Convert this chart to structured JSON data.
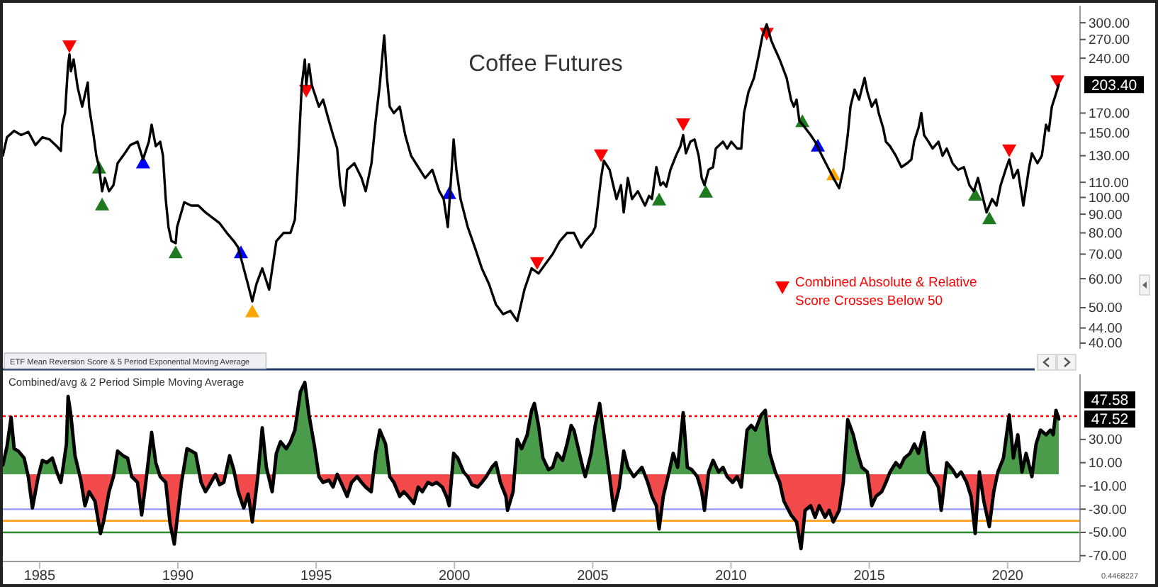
{
  "chart_data": [
    {
      "type": "line",
      "title": "Coffee Futures",
      "xlim": [
        1983.67,
        2022.62
      ],
      "ylim": [
        38.6,
        334
      ],
      "log": true,
      "tick_labels": "y",
      "legend": "bottom right",
      "yticks": [
        {
          "value": 300,
          "label": "300.00"
        },
        {
          "value": 270,
          "label": "270.00"
        },
        {
          "value": 240,
          "label": "240.00"
        },
        {
          "value": 170,
          "label": "170.00"
        },
        {
          "value": 150,
          "label": "150.00"
        },
        {
          "value": 130,
          "label": "130.00"
        },
        {
          "value": 110,
          "label": "110.00"
        },
        {
          "value": 100,
          "label": "100.00"
        },
        {
          "value": 90,
          "label": "90.00"
        },
        {
          "value": 80,
          "label": "80.00"
        },
        {
          "value": 70,
          "label": "70.00"
        },
        {
          "value": 60,
          "label": "60.00"
        },
        {
          "value": 50,
          "label": "50.00"
        },
        {
          "value": 44,
          "label": "44.00"
        },
        {
          "value": 40,
          "label": "40.00"
        }
      ],
      "series": [
        {
          "color": "#000000",
          "x": [
            1983.67,
            1983.82,
            1984.08,
            1984.33,
            1984.59,
            1984.85,
            1985.1,
            1985.36,
            1985.62,
            1985.77,
            1985.82,
            1985.92,
            1986.03,
            1986.08,
            1986.13,
            1986.23,
            1986.38,
            1986.54,
            1986.74,
            1986.79,
            1986.95,
            1987.05,
            1987.15,
            1987.26,
            1987.36,
            1987.51,
            1987.67,
            1987.82,
            1988.08,
            1988.28,
            1988.54,
            1988.74,
            1988.95,
            1989.05,
            1989.2,
            1989.36,
            1989.46,
            1989.56,
            1989.66,
            1989.77,
            1989.92,
            1989.97,
            1990.23,
            1990.48,
            1990.74,
            1991.0,
            1991.25,
            1991.51,
            1991.77,
            1992.02,
            1992.18,
            1992.38,
            1992.53,
            1992.69,
            1992.84,
            1993.05,
            1993.3,
            1993.56,
            1993.82,
            1994.07,
            1994.23,
            1994.33,
            1994.48,
            1994.59,
            1994.64,
            1994.74,
            1994.84,
            1995.1,
            1995.25,
            1995.46,
            1995.61,
            1995.76,
            1995.87,
            1996.02,
            1996.12,
            1996.38,
            1996.64,
            1996.79,
            1997.0,
            1997.15,
            1997.3,
            1997.46,
            1997.56,
            1997.66,
            1997.81,
            1998.02,
            1998.22,
            1998.43,
            1998.69,
            1998.94,
            1999.2,
            1999.45,
            1999.61,
            1999.76,
            1999.97,
            2000.07,
            2000.22,
            2000.48,
            2000.74,
            2000.99,
            2001.25,
            2001.5,
            2001.76,
            2002.02,
            2002.27,
            2002.53,
            2002.79,
            2003.04,
            2003.3,
            2003.55,
            2003.81,
            2004.07,
            2004.32,
            2004.58,
            2004.73,
            2004.99,
            2005.09,
            2005.3,
            2005.4,
            2005.61,
            2005.86,
            2006.02,
            2006.12,
            2006.27,
            2006.42,
            2006.63,
            2006.89,
            2007.04,
            2007.14,
            2007.3,
            2007.45,
            2007.55,
            2007.66,
            2007.81,
            2008.01,
            2008.17,
            2008.27,
            2008.37,
            2008.53,
            2008.68,
            2008.83,
            2008.94,
            2009.04,
            2009.19,
            2009.35,
            2009.45,
            2009.71,
            2009.86,
            2010.01,
            2010.22,
            2010.37,
            2010.47,
            2010.63,
            2010.83,
            2010.99,
            2011.14,
            2011.29,
            2011.45,
            2011.6,
            2011.76,
            2012.01,
            2012.17,
            2012.27,
            2012.37,
            2012.47,
            2012.68,
            2012.88,
            2013.04,
            2013.29,
            2013.5,
            2013.7,
            2013.91,
            2014.06,
            2014.22,
            2014.32,
            2014.47,
            2014.63,
            2014.83,
            2014.93,
            2015.09,
            2015.24,
            2015.34,
            2015.5,
            2015.6,
            2015.75,
            2015.96,
            2016.16,
            2016.37,
            2016.52,
            2016.62,
            2016.78,
            2016.88,
            2016.98,
            2017.14,
            2017.29,
            2017.5,
            2017.65,
            2017.8,
            2018.01,
            2018.21,
            2018.42,
            2018.62,
            2018.78,
            2018.93,
            2019.09,
            2019.24,
            2019.44,
            2019.6,
            2019.75,
            2019.96,
            2020.06,
            2020.21,
            2020.37,
            2020.57,
            2020.78,
            2020.88,
            2021.08,
            2021.24,
            2021.39,
            2021.49,
            2021.6,
            2021.75,
            2021.85
          ],
          "values": [
            130,
            146,
            152,
            148,
            151,
            139,
            146,
            144,
            138,
            134,
            158,
            170,
            231,
            246,
            221,
            238,
            199,
            177,
            206,
            177,
            148,
            130,
            121,
            104,
            113,
            104,
            108,
            124,
            132,
            139,
            142,
            127,
            142,
            158,
            138,
            142,
            130,
            99,
            83,
            76,
            75,
            83,
            97,
            95,
            95,
            91,
            88,
            85,
            80,
            76,
            73,
            64,
            58,
            52,
            58,
            64,
            56,
            76,
            80,
            80,
            87,
            119,
            203,
            238,
            203,
            231,
            203,
            177,
            185,
            162,
            148,
            136,
            108,
            95,
            119,
            124,
            113,
            104,
            124,
            162,
            203,
            277,
            212,
            177,
            170,
            177,
            148,
            130,
            121,
            113,
            119,
            104,
            99,
            83,
            144,
            119,
            99,
            83,
            73,
            64,
            58,
            51,
            48,
            49,
            46,
            56,
            64,
            62,
            66,
            70,
            76,
            80,
            80,
            73,
            76,
            80,
            83,
            113,
            126,
            119,
            99,
            108,
            91,
            113,
            99,
            104,
            95,
            101,
            99,
            121,
            108,
            110,
            107,
            119,
            130,
            138,
            148,
            132,
            142,
            144,
            130,
            113,
            108,
            119,
            121,
            136,
            142,
            136,
            142,
            136,
            136,
            170,
            194,
            212,
            242,
            277,
            297,
            269,
            253,
            238,
            212,
            185,
            177,
            185,
            162,
            155,
            148,
            142,
            130,
            121,
            113,
            106,
            119,
            148,
            177,
            197,
            185,
            212,
            194,
            177,
            185,
            170,
            155,
            142,
            138,
            130,
            121,
            124,
            127,
            142,
            155,
            170,
            148,
            142,
            136,
            142,
            130,
            136,
            124,
            119,
            121,
            108,
            104,
            113,
            101,
            91,
            99,
            95,
            108,
            121,
            127,
            113,
            119,
            95,
            121,
            132,
            124,
            130,
            158,
            152,
            177,
            192,
            203.4
          ]
        },
        {
          "type": "scatter",
          "name": "Combined Absolute & Relative Score Crosses Below 50",
          "color": "#ff0000",
          "marker": "triangle",
          "x": [
            1986.08,
            1994.64,
            2002.99,
            2005.3,
            2008.27,
            2011.29,
            2020.06,
            2021.8
          ],
          "values": [
            258,
            195,
            66,
            130,
            158,
            279,
            134,
            207
          ]
        },
        {
          "type": "scatter",
          "color": "#1e7a1e",
          "marker": "triangle",
          "x": [
            1987.15,
            1987.26,
            1989.92,
            2007.4,
            2009.09,
            2012.58,
            2018.83,
            2019.34
          ],
          "values": [
            121,
            96,
            71,
            99,
            104,
            162,
            102,
            88
          ]
        },
        {
          "type": "scatter",
          "color": "#0000ff",
          "marker": "triangle",
          "x": [
            1988.74,
            1992.28,
            1999.81,
            2013.14
          ],
          "values": [
            125,
            71,
            103,
            139
          ]
        },
        {
          "type": "scatter",
          "color": "#ffa500",
          "marker": "triangle",
          "x": [
            1992.69,
            2013.7
          ],
          "values": [
            49,
            116
          ]
        }
      ],
      "annotations": [
        "203.40"
      ]
    },
    {
      "type": "area",
      "title": "Combined/avg & 2 Period Simple Moving Average",
      "xlim": [
        1983.67,
        2022.62
      ],
      "xticks": [
        1985,
        1990,
        1995,
        2000,
        2005,
        2010,
        2015,
        2020
      ],
      "ylim": [
        -75,
        86
      ],
      "yticks": [
        {
          "value": 30,
          "label": "30.00"
        },
        {
          "value": 10,
          "label": "10.00"
        },
        {
          "value": -10,
          "label": "-10.00"
        },
        {
          "value": -30,
          "label": "-30.00"
        },
        {
          "value": -50,
          "label": "-50.00"
        },
        {
          "value": -70,
          "label": "-70.00"
        }
      ],
      "series": [
        {
          "color": "#000000",
          "colors": [
            "#4a9c4a",
            "#4a9c4a",
            "#4a9c4a",
            "#4a9c4a",
            "#4a9c4a",
            "#4a9c4a",
            "#f24a4a",
            "#f24a4a",
            "#f24a4a",
            "#4a9c4a",
            "#4a9c4a",
            "#4a9c4a",
            "#4a9c4a",
            "#f24a4a",
            "#4a9c4a",
            "#4a9c4a",
            "#4a9c4a",
            "#4a9c4a",
            "#f24a4a",
            "#f24a4a",
            "#f24a4a",
            "#f24a4a",
            "#f24a4a",
            "#f24a4a",
            "#f24a4a",
            "#f24a4a",
            "#4a9c4a",
            "#4a9c4a",
            "#4a9c4a",
            "#f24a4a",
            "#f24a4a",
            "#f24a4a",
            "#f24a4a",
            "#4a9c4a",
            "#4a9c4a",
            "#f24a4a",
            "#f24a4a",
            "#f24a4a",
            "#f24a4a",
            "#f24a4a",
            "#f24a4a",
            "#4a9c4a",
            "#4a9c4a",
            "#4a9c4a",
            "#f24a4a",
            "#f24a4a",
            "#f24a4a",
            "#4a9c4a",
            "#f24a4a",
            "#f24a4a",
            "#4a9c4a",
            "#4a9c4a",
            "#f24a4a",
            "#f24a4a",
            "#f24a4a",
            "#f24a4a",
            "#f24a4a",
            "#4a9c4a",
            "#4a9c4a",
            "#f24a4a",
            "#4a9c4a",
            "#4a9c4a",
            "#4a9c4a",
            "#4a9c4a",
            "#4a9c4a",
            "#4a9c4a",
            "#4a9c4a",
            "#4a9c4a",
            "#4a9c4a",
            "#f24a4a",
            "#f24a4a",
            "#f24a4a",
            "#f24a4a",
            "#4a9c4a",
            "#f24a4a",
            "#f24a4a",
            "#f24a4a",
            "#f24a4a",
            "#f24a4a",
            "#f24a4a",
            "#f24a4a",
            "#4a9c4a",
            "#4a9c4a",
            "#4a9c4a",
            "#f24a4a",
            "#f24a4a",
            "#f24a4a",
            "#f24a4a",
            "#f24a4a",
            "#f24a4a",
            "#f24a4a",
            "#f24a4a",
            "#f24a4a",
            "#f24a4a",
            "#f24a4a",
            "#f24a4a",
            "#f24a4a",
            "#f24a4a",
            "#4a9c4a",
            "#4a9c4a",
            "#4a9c4a",
            "#f24a4a",
            "#f24a4a",
            "#f24a4a",
            "#f24a4a",
            "#f24a4a",
            "#4a9c4a",
            "#4a9c4a",
            "#f24a4a",
            "#f24a4a",
            "#f24a4a",
            "#f24a4a",
            "#4a9c4a",
            "#4a9c4a",
            "#4a9c4a",
            "#4a9c4a",
            "#4a9c4a",
            "#4a9c4a",
            "#4a9c4a",
            "#4a9c4a",
            "#4a9c4a",
            "#4a9c4a",
            "#4a9c4a",
            "#4a9c4a",
            "#4a9c4a",
            "#4a9c4a",
            "#4a9c4a",
            "#4a9c4a",
            "#f24a4a",
            "#4a9c4a",
            "#4a9c4a",
            "#4a9c4a",
            "#4a9c4a",
            "#f24a4a",
            "#f24a4a",
            "#f24a4a",
            "#4a9c4a",
            "#4a9c4a",
            "#f24a4a",
            "#4a9c4a",
            "#4a9c4a",
            "#f24a4a",
            "#f24a4a",
            "#f24a4a",
            "#f24a4a",
            "#f24a4a",
            "#4a9c4a",
            "#4a9c4a",
            "#4a9c4a",
            "#4a9c4a",
            "#4a9c4a",
            "#4a9c4a",
            "#f24a4a",
            "#f24a4a",
            "#f24a4a",
            "#4a9c4a",
            "#4a9c4a",
            "#4a9c4a",
            "#4a9c4a",
            "#f24a4a",
            "#f24a4a",
            "#f24a4a",
            "#f24a4a",
            "#4a9c4a",
            "#4a9c4a",
            "#4a9c4a",
            "#4a9c4a",
            "#4a9c4a",
            "#4a9c4a",
            "#4a9c4a",
            "#f24a4a",
            "#f24a4a",
            "#f24a4a",
            "#f24a4a",
            "#f24a4a",
            "#f24a4a",
            "#f24a4a",
            "#f24a4a",
            "#f24a4a",
            "#f24a4a",
            "#f24a4a",
            "#f24a4a",
            "#f24a4a",
            "#f24a4a",
            "#4a9c4a",
            "#4a9c4a",
            "#4a9c4a",
            "#4a9c4a",
            "#4a9c4a",
            "#f24a4a",
            "#f24a4a",
            "#f24a4a",
            "#f24a4a",
            "#4a9c4a",
            "#4a9c4a",
            "#4a9c4a",
            "#4a9c4a",
            "#4a9c4a",
            "#4a9c4a",
            "#4a9c4a",
            "#4a9c4a",
            "#4a9c4a",
            "#f24a4a",
            "#f24a4a",
            "#f24a4a",
            "#4a9c4a",
            "#4a9c4a",
            "#f24a4a",
            "#4a9c4a",
            "#f24a4a",
            "#f24a4a",
            "#f24a4a",
            "#4a9c4a",
            "#f24a4a",
            "#f24a4a",
            "#f24a4a",
            "#4a9c4a",
            "#4a9c4a",
            "#4a9c4a",
            "#4a9c4a",
            "#4a9c4a",
            "#4a9c4a",
            "#4a9c4a",
            "#f24a4a",
            "#4a9c4a",
            "#4a9c4a",
            "#4a9c4a",
            "#4a9c4a",
            "#4a9c4a",
            "#4a9c4a",
            "#4a9c4a"
          ],
          "x": [
            1983.67,
            1983.82,
            1983.97,
            1984.08,
            1984.23,
            1984.44,
            1984.59,
            1984.74,
            1984.95,
            1985.1,
            1985.26,
            1985.46,
            1985.62,
            1985.77,
            1985.97,
            1986.03,
            1986.13,
            1986.28,
            1986.49,
            1986.64,
            1986.79,
            1987.0,
            1987.2,
            1987.31,
            1987.51,
            1987.67,
            1987.82,
            1988.02,
            1988.18,
            1988.33,
            1988.54,
            1988.69,
            1988.84,
            1989.05,
            1989.2,
            1989.36,
            1989.56,
            1989.72,
            1989.87,
            1989.97,
            1990.13,
            1990.33,
            1990.49,
            1990.64,
            1990.84,
            1991.0,
            1991.15,
            1991.36,
            1991.51,
            1991.66,
            1991.87,
            1992.02,
            1992.18,
            1992.38,
            1992.54,
            1992.69,
            1992.89,
            1993.05,
            1993.2,
            1993.41,
            1993.56,
            1993.71,
            1993.92,
            1994.07,
            1994.23,
            1994.43,
            1994.59,
            1994.74,
            1994.94,
            1995.1,
            1995.25,
            1995.46,
            1995.61,
            1995.76,
            1995.97,
            1996.12,
            1996.28,
            1996.48,
            1996.64,
            1996.79,
            1996.99,
            1997.15,
            1997.3,
            1997.51,
            1997.66,
            1997.81,
            1998.02,
            1998.17,
            1998.33,
            1998.53,
            1998.69,
            1998.84,
            1999.04,
            1999.2,
            1999.35,
            1999.56,
            1999.71,
            1999.81,
            1999.97,
            2000.12,
            2000.33,
            2000.48,
            2000.63,
            2000.84,
            2000.99,
            2001.15,
            2001.35,
            2001.5,
            2001.66,
            2001.86,
            2001.92,
            2002.12,
            2002.27,
            2002.43,
            2002.63,
            2002.79,
            2002.89,
            2003.04,
            2003.2,
            2003.4,
            2003.55,
            2003.71,
            2003.91,
            2004.07,
            2004.22,
            2004.32,
            2004.48,
            2004.68,
            2004.73,
            2004.94,
            2005.09,
            2005.25,
            2005.45,
            2005.61,
            2005.76,
            2005.96,
            2006.12,
            2006.27,
            2006.48,
            2006.63,
            2006.78,
            2006.99,
            2007.14,
            2007.3,
            2007.4,
            2007.55,
            2007.76,
            2007.91,
            2008.07,
            2008.27,
            2008.42,
            2008.58,
            2008.78,
            2008.94,
            2009.04,
            2009.19,
            2009.35,
            2009.55,
            2009.71,
            2009.86,
            2010.06,
            2010.22,
            2010.37,
            2010.58,
            2010.73,
            2010.88,
            2011.09,
            2011.24,
            2011.4,
            2011.6,
            2011.76,
            2011.91,
            2012.17,
            2012.37,
            2012.53,
            2012.68,
            2012.88,
            2013.04,
            2013.19,
            2013.4,
            2013.55,
            2013.7,
            2013.91,
            2014.06,
            2014.22,
            2014.42,
            2014.58,
            2014.73,
            2014.93,
            2015.09,
            2015.24,
            2015.45,
            2015.6,
            2015.75,
            2015.96,
            2016.11,
            2016.27,
            2016.47,
            2016.63,
            2016.78,
            2016.98,
            2017.14,
            2017.29,
            2017.5,
            2017.6,
            2017.8,
            2018.01,
            2018.16,
            2018.32,
            2018.52,
            2018.68,
            2018.83,
            2018.98,
            2019.14,
            2019.34,
            2019.5,
            2019.65,
            2019.85,
            2020.06,
            2020.21,
            2020.37,
            2020.52,
            2020.67,
            2020.88,
            2021.03,
            2021.19,
            2021.39,
            2021.55,
            2021.65,
            2021.75,
            2021.85
          ],
          "values": [
            8,
            24,
            49,
            22,
            20,
            14,
            -2,
            -29,
            -2,
            12,
            10,
            14,
            2,
            -7,
            26,
            67,
            51,
            16,
            -5,
            -27,
            -15,
            -23,
            -51,
            -41,
            -15,
            -2,
            20,
            16,
            14,
            -2,
            -7,
            -35,
            -7,
            36,
            10,
            -2,
            -7,
            -43,
            -60,
            -39,
            -7,
            22,
            20,
            18,
            -7,
            -15,
            -9,
            0,
            -9,
            -7,
            16,
            4,
            -15,
            -29,
            -17,
            -41,
            -2,
            40,
            6,
            -15,
            18,
            28,
            22,
            28,
            38,
            71,
            79,
            51,
            24,
            -2,
            -7,
            -5,
            -11,
            0,
            -11,
            -19,
            -7,
            -2,
            -7,
            -11,
            -15,
            18,
            38,
            26,
            -2,
            -7,
            -19,
            -15,
            -19,
            -25,
            -11,
            -15,
            -7,
            -9,
            -7,
            -11,
            -19,
            -27,
            18,
            14,
            2,
            -2,
            -9,
            -11,
            -7,
            -2,
            6,
            10,
            -7,
            -19,
            -31,
            -15,
            30,
            22,
            34,
            55,
            61,
            42,
            14,
            4,
            6,
            18,
            12,
            26,
            42,
            38,
            22,
            2,
            -2,
            18,
            42,
            61,
            26,
            -2,
            -31,
            -11,
            20,
            6,
            -2,
            2,
            6,
            -7,
            -19,
            -27,
            -47,
            -19,
            2,
            18,
            6,
            53,
            6,
            4,
            -2,
            -15,
            -31,
            2,
            12,
            2,
            6,
            -2,
            -7,
            -2,
            -11,
            38,
            42,
            38,
            51,
            55,
            18,
            2,
            -7,
            -23,
            -35,
            -41,
            -64,
            -31,
            -27,
            -37,
            -27,
            -37,
            -31,
            -41,
            -31,
            -7,
            47,
            34,
            18,
            6,
            2,
            -27,
            -19,
            -15,
            -7,
            2,
            10,
            6,
            14,
            18,
            26,
            18,
            36,
            2,
            -2,
            -11,
            -31,
            10,
            4,
            -2,
            2,
            -7,
            -19,
            -51,
            2,
            -23,
            -45,
            -15,
            2,
            14,
            51,
            14,
            34,
            2,
            18,
            -2,
            26,
            38,
            34,
            38,
            34,
            55,
            47.52
          ]
        }
      ],
      "ref_lines": [
        {
          "axis": "y",
          "value": 50,
          "color": "#ff0000",
          "line_style": "dotted"
        },
        {
          "axis": "y",
          "value": -30,
          "color": "#a3a3ff"
        },
        {
          "axis": "y",
          "value": -40,
          "color": "#ffa020"
        },
        {
          "axis": "y",
          "value": -50,
          "color": "#2e8b2e"
        }
      ],
      "annotations": [
        "47.58",
        "47.52",
        "ETF Mean Reversion Score & 5 Period Exponential Moving Average",
        "0.4468227"
      ]
    }
  ]
}
